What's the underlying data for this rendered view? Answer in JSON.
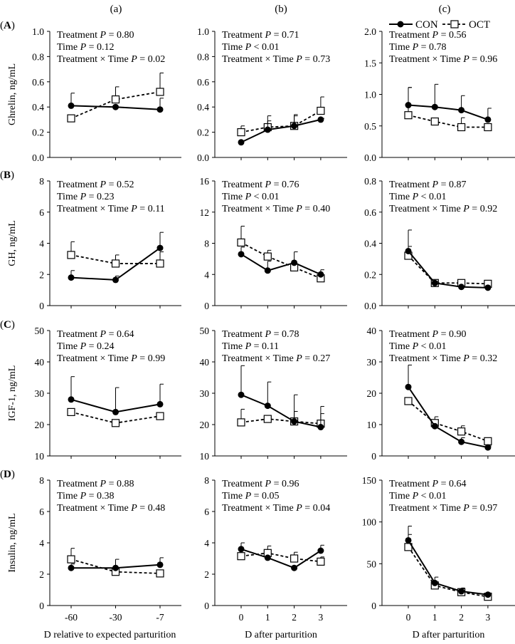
{
  "column_headers": [
    "(a)",
    "(b)",
    "(c)"
  ],
  "row_labels": [
    "A",
    "B",
    "C",
    "D"
  ],
  "legend": [
    {
      "name": "CON",
      "style": "solid-filled-circle"
    },
    {
      "name": "OCT",
      "style": "dashed-open-square"
    }
  ],
  "colors": {
    "line": "#000000",
    "background": "#ffffff"
  },
  "stat_terms": {
    "treatment": "Treatment",
    "time": "Time",
    "interaction": "Treatment × Time",
    "p": "P"
  },
  "xlabels": [
    "D relative to expected parturition",
    "D after parturition",
    "D after parturition"
  ],
  "chart_data": [
    {
      "type": "line",
      "row": "A",
      "col": "a",
      "ylabel": "Ghrelin, ng/mL",
      "categories": [
        "-60",
        "-30",
        "-7"
      ],
      "ylim": [
        0,
        1
      ],
      "yticks": [
        "0.0",
        "0.2",
        "0.4",
        "0.6",
        "0.8",
        "1.0"
      ],
      "stats": [
        "= 0.80",
        "= 0.12",
        "= 0.02"
      ],
      "series": [
        {
          "name": "CON",
          "values": [
            0.41,
            0.4,
            0.38
          ],
          "sem": [
            0.1,
            0.0,
            0.09
          ]
        },
        {
          "name": "OCT",
          "values": [
            0.31,
            0.46,
            0.52
          ],
          "sem": [
            0,
            0.1,
            0.15
          ]
        }
      ]
    },
    {
      "type": "line",
      "row": "A",
      "col": "b",
      "ylabel": "",
      "categories": [
        "0",
        "1",
        "2",
        "3"
      ],
      "ylim": [
        0,
        1
      ],
      "yticks": [
        "0.0",
        "0.2",
        "0.4",
        "0.6",
        "0.8",
        "1.0"
      ],
      "stats": [
        "= 0.71",
        "< 0.01",
        "= 0.73"
      ],
      "series": [
        {
          "name": "CON",
          "values": [
            0.12,
            0.22,
            0.25,
            0.3
          ],
          "sem": [
            0,
            0.07,
            0.08,
            0.01
          ]
        },
        {
          "name": "OCT",
          "values": [
            0.2,
            0.24,
            0.25,
            0.37
          ],
          "sem": [
            0.05,
            0.09,
            0.09,
            0.11
          ]
        }
      ]
    },
    {
      "type": "line",
      "row": "A",
      "col": "c",
      "ylabel": "",
      "categories": [
        "0",
        "1",
        "2",
        "3"
      ],
      "ylim": [
        0,
        2
      ],
      "yticks": [
        "0.0",
        "0.5",
        "1.0",
        "1.5",
        "2.0"
      ],
      "stats": [
        "= 0.56",
        "= 0.78",
        "= 0.96"
      ],
      "series": [
        {
          "name": "CON",
          "values": [
            0.83,
            0.8,
            0.75,
            0.6
          ],
          "sem": [
            0.28,
            0.36,
            0.23,
            0.18
          ]
        },
        {
          "name": "OCT",
          "values": [
            0.67,
            0.57,
            0.48,
            0.48
          ],
          "sem": [
            0.44,
            0,
            0.15,
            0
          ]
        }
      ]
    },
    {
      "type": "line",
      "row": "B",
      "col": "a",
      "ylabel": "GH, ng/mL",
      "categories": [
        "-60",
        "-30",
        "-7"
      ],
      "ylim": [
        0,
        8
      ],
      "yticks": [
        "0",
        "2",
        "4",
        "6",
        "8"
      ],
      "stats": [
        "= 0.52",
        "= 0.23",
        "= 0.11"
      ],
      "series": [
        {
          "name": "CON",
          "values": [
            1.8,
            1.65,
            3.7
          ],
          "sem": [
            0.45,
            0.25,
            1.0
          ]
        },
        {
          "name": "OCT",
          "values": [
            3.25,
            2.7,
            2.7
          ],
          "sem": [
            0.85,
            0.55,
            0.75
          ]
        }
      ]
    },
    {
      "type": "line",
      "row": "B",
      "col": "b",
      "ylabel": "",
      "categories": [
        "0",
        "1",
        "2",
        "3"
      ],
      "ylim": [
        0,
        16
      ],
      "yticks": [
        "0",
        "4",
        "8",
        "12",
        "16"
      ],
      "stats": [
        "= 0.76",
        "< 0.01",
        "= 0.40"
      ],
      "series": [
        {
          "name": "CON",
          "values": [
            6.6,
            4.5,
            5.5,
            4.0
          ],
          "sem": [
            0.9,
            1.2,
            1.4,
            0.6
          ]
        },
        {
          "name": "OCT",
          "values": [
            8.1,
            6.3,
            4.9,
            3.5
          ],
          "sem": [
            2.1,
            0.8,
            0,
            0
          ]
        }
      ]
    },
    {
      "type": "line",
      "row": "B",
      "col": "c",
      "ylabel": "",
      "categories": [
        "0",
        "1",
        "2",
        "3"
      ],
      "ylim": [
        0,
        0.8
      ],
      "yticks": [
        "0.0",
        "0.2",
        "0.4",
        "0.6",
        "0.8"
      ],
      "stats": [
        "= 0.87",
        "< 0.01",
        "= 0.92"
      ],
      "series": [
        {
          "name": "CON",
          "values": [
            0.35,
            0.145,
            0.12,
            0.115
          ],
          "sem": [
            0.03,
            0.01,
            0,
            0
          ]
        },
        {
          "name": "OCT",
          "values": [
            0.32,
            0.145,
            0.145,
            0.14
          ],
          "sem": [
            0.165,
            0.01,
            0.01,
            0.01
          ]
        }
      ]
    },
    {
      "type": "line",
      "row": "C",
      "col": "a",
      "ylabel": "IGF-1, ng/mL",
      "categories": [
        "-60",
        "-30",
        "-7"
      ],
      "ylim": [
        10,
        50
      ],
      "yticks": [
        "10",
        "20",
        "30",
        "40",
        "50"
      ],
      "stats": [
        "= 0.64",
        "= 0.24",
        "= 0.99"
      ],
      "series": [
        {
          "name": "CON",
          "values": [
            28,
            24,
            26.5
          ],
          "sem": [
            7.3,
            7.8,
            6.4
          ]
        },
        {
          "name": "OCT",
          "values": [
            24,
            20.5,
            22.7
          ],
          "sem": [
            0,
            0,
            0
          ]
        }
      ]
    },
    {
      "type": "line",
      "row": "C",
      "col": "b",
      "ylabel": "",
      "categories": [
        "0",
        "1",
        "2",
        "3"
      ],
      "ylim": [
        10,
        50
      ],
      "yticks": [
        "10",
        "20",
        "30",
        "40",
        "50"
      ],
      "stats": [
        "= 0.78",
        "= 0.11",
        "= 0.27"
      ],
      "series": [
        {
          "name": "CON",
          "values": [
            29.5,
            26,
            21,
            19.2
          ],
          "sem": [
            9.3,
            7.6,
            8.5,
            4.3
          ]
        },
        {
          "name": "OCT",
          "values": [
            20.7,
            21.8,
            21,
            20.3
          ],
          "sem": [
            4.2,
            0,
            3.2,
            5.5
          ]
        }
      ]
    },
    {
      "type": "line",
      "row": "C",
      "col": "c",
      "ylabel": "",
      "categories": [
        "0",
        "1",
        "2",
        "3"
      ],
      "ylim": [
        0,
        40
      ],
      "yticks": [
        "0",
        "10",
        "20",
        "30",
        "40"
      ],
      "stats": [
        "= 0.90",
        "< 0.01",
        "= 0.32"
      ],
      "series": [
        {
          "name": "CON",
          "values": [
            22,
            9.5,
            4.5,
            2.7
          ],
          "sem": [
            7,
            0,
            1.3,
            0.5
          ]
        },
        {
          "name": "OCT",
          "values": [
            17.5,
            10.5,
            7.8,
            4.7
          ],
          "sem": [
            0,
            2,
            1.8,
            1
          ]
        }
      ]
    },
    {
      "type": "line",
      "row": "D",
      "col": "a",
      "ylabel": "Insulin, ng/mL",
      "categories": [
        "-60",
        "-30",
        "-7"
      ],
      "ylim": [
        0,
        8
      ],
      "yticks": [
        "0",
        "2",
        "4",
        "6",
        "8"
      ],
      "stats": [
        "= 0.88",
        "= 0.38",
        "= 0.48"
      ],
      "series": [
        {
          "name": "CON",
          "values": [
            2.4,
            2.4,
            2.6
          ],
          "sem": [
            0.25,
            0.55,
            0.45
          ]
        },
        {
          "name": "OCT",
          "values": [
            2.95,
            2.15,
            2.05
          ],
          "sem": [
            0.7,
            0,
            0
          ]
        }
      ]
    },
    {
      "type": "line",
      "row": "D",
      "col": "b",
      "ylabel": "",
      "categories": [
        "0",
        "1",
        "2",
        "3"
      ],
      "ylim": [
        0,
        8
      ],
      "yticks": [
        "0",
        "2",
        "4",
        "6",
        "8"
      ],
      "stats": [
        "= 0.96",
        "= 0.05",
        "= 0.04"
      ],
      "series": [
        {
          "name": "CON",
          "values": [
            3.6,
            3.05,
            2.4,
            3.5
          ],
          "sem": [
            0.4,
            0,
            0,
            0.35
          ]
        },
        {
          "name": "OCT",
          "values": [
            3.15,
            3.35,
            3.0,
            2.8
          ],
          "sem": [
            0,
            0.45,
            0.4,
            0.3
          ]
        }
      ]
    },
    {
      "type": "line",
      "row": "D",
      "col": "c",
      "ylabel": "",
      "categories": [
        "0",
        "1",
        "2",
        "3"
      ],
      "ylim": [
        0,
        150
      ],
      "yticks": [
        "0",
        "50",
        "100",
        "150"
      ],
      "stats": [
        "= 0.64",
        "< 0.01",
        "= 0.97"
      ],
      "series": [
        {
          "name": "CON",
          "values": [
            78,
            27,
            17,
            13
          ],
          "sem": [
            17,
            7,
            4,
            2
          ]
        },
        {
          "name": "OCT",
          "values": [
            70,
            24,
            16,
            10.5
          ],
          "sem": [
            15,
            0,
            0,
            0
          ]
        }
      ]
    }
  ]
}
